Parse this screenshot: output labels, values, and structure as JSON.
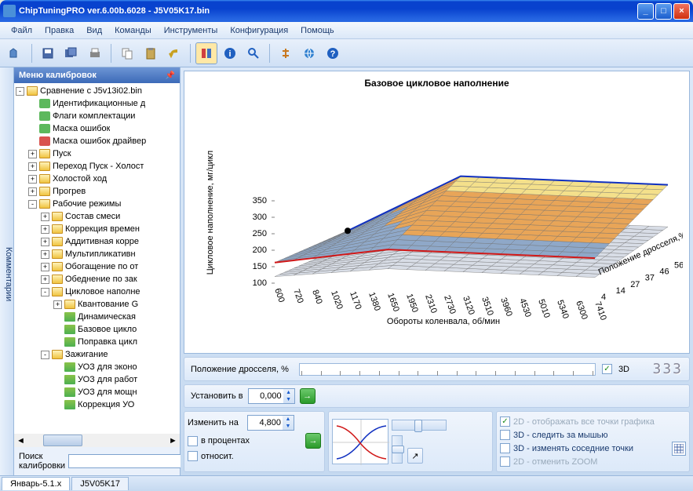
{
  "title": "ChipTuningPRO ver.6.00b.6028 - J5V05K17.bin",
  "menu": [
    "Файл",
    "Правка",
    "Вид",
    "Команды",
    "Инструменты",
    "Конфигурация",
    "Помощь"
  ],
  "vtab": "Комментарии",
  "sidebar": {
    "header": "Меню калибровок",
    "search_label": "Поиск калибровки",
    "nodes": [
      {
        "d": 0,
        "e": "-",
        "i": "folder-open",
        "t": "Сравнение с J5v13i02.bin"
      },
      {
        "d": 1,
        "e": "",
        "i": "check",
        "t": "Идентификационные д"
      },
      {
        "d": 1,
        "e": "",
        "i": "check",
        "t": "Флаги комплектации"
      },
      {
        "d": 1,
        "e": "",
        "i": "check",
        "t": "Маска ошибок"
      },
      {
        "d": 1,
        "e": "",
        "i": "x",
        "t": "Маска ошибок драйвер"
      },
      {
        "d": 1,
        "e": "+",
        "i": "folder",
        "t": "Пуск"
      },
      {
        "d": 1,
        "e": "+",
        "i": "folder",
        "t": "Переход Пуск - Холост"
      },
      {
        "d": 1,
        "e": "+",
        "i": "folder",
        "t": "Холостой ход"
      },
      {
        "d": 1,
        "e": "+",
        "i": "folder",
        "t": "Прогрев"
      },
      {
        "d": 1,
        "e": "-",
        "i": "folder-open",
        "t": "Рабочие режимы"
      },
      {
        "d": 2,
        "e": "+",
        "i": "folder",
        "t": "Состав смеси"
      },
      {
        "d": 2,
        "e": "+",
        "i": "folder",
        "t": "Коррекция времен"
      },
      {
        "d": 2,
        "e": "+",
        "i": "folder",
        "t": "Аддитивная корре"
      },
      {
        "d": 2,
        "e": "+",
        "i": "folder",
        "t": "Мультипликативн"
      },
      {
        "d": 2,
        "e": "+",
        "i": "folder",
        "t": "Обогащение по от"
      },
      {
        "d": 2,
        "e": "+",
        "i": "folder",
        "t": "Обеднение по зак"
      },
      {
        "d": 2,
        "e": "-",
        "i": "folder-open",
        "t": "Цикловое наполне"
      },
      {
        "d": 3,
        "e": "+",
        "i": "folder",
        "t": "Квантование G"
      },
      {
        "d": 3,
        "e": "",
        "i": "chart",
        "t": "Динамическая"
      },
      {
        "d": 3,
        "e": "",
        "i": "chart",
        "t": "Базовое цикло"
      },
      {
        "d": 3,
        "e": "",
        "i": "chart",
        "t": "Поправка цикл"
      },
      {
        "d": 2,
        "e": "-",
        "i": "folder-open",
        "t": "Зажигание"
      },
      {
        "d": 3,
        "e": "",
        "i": "chart",
        "t": "УОЗ для эконо"
      },
      {
        "d": 3,
        "e": "",
        "i": "chart",
        "t": "УОЗ для работ"
      },
      {
        "d": 3,
        "e": "",
        "i": "chart",
        "t": "УОЗ для мощн"
      },
      {
        "d": 3,
        "e": "",
        "i": "chart",
        "t": "Коррекция УО"
      }
    ]
  },
  "chart": {
    "title": "Базовое цикловое наполнение",
    "ylabel": "Цикловое наполнение, мг/цикл",
    "xlabel": "Обороты коленвала, об/мин",
    "zlabel": "Положение дросселя,%",
    "yticks": [
      "100",
      "150",
      "200",
      "250",
      "300",
      "350"
    ],
    "xticks": [
      "600",
      "720",
      "840",
      "1020",
      "1170",
      "1380",
      "1650",
      "1950",
      "2310",
      "2730",
      "3120",
      "3510",
      "3960",
      "4530",
      "5010",
      "5340",
      "6300",
      "7410"
    ],
    "zticks": [
      "4",
      "14",
      "27",
      "37",
      "46",
      "56"
    ],
    "colors": {
      "top": "#f4e08b",
      "mid": "#e8a558",
      "low": "#8fa8c8",
      "edge1": "#1030c0",
      "edge2": "#d01818",
      "grid": "#707070"
    }
  },
  "controls": {
    "throttle_label": "Положение дросселя, %",
    "cb_3d": "3D",
    "display": "333",
    "set_label": "Установить в",
    "set_val": "0,000",
    "change_label": "Изменить на",
    "change_val": "4,800",
    "cb_percent": "в процентах",
    "cb_relative": "относит.",
    "opts": [
      {
        "t": "2D - отображать все точки графика",
        "on": true,
        "dis": true
      },
      {
        "t": "3D - следить за мышью",
        "on": false,
        "dis": false
      },
      {
        "t": "3D - изменять соседние точки",
        "on": false,
        "dis": false
      },
      {
        "t": "2D - отменить ZOOM",
        "on": false,
        "dis": true
      }
    ]
  },
  "status": {
    "tabs": [
      "Январь-5.1.x",
      "J5V05K17"
    ]
  }
}
